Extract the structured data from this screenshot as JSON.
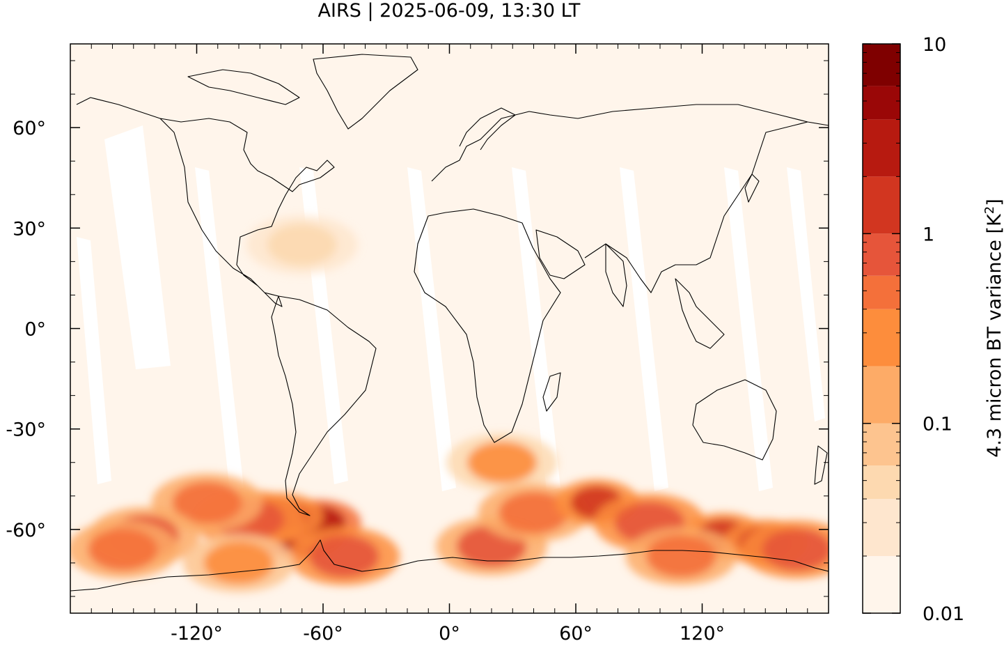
{
  "chart_data": {
    "type": "heatmap",
    "title": "AIRS | 2025-06-09, 13:30 LT",
    "x_axis": {
      "range": [
        -180,
        180
      ],
      "tick_labels": [
        {
          "value": -120,
          "label": "-120°"
        },
        {
          "value": -60,
          "label": "-60°"
        },
        {
          "value": 0,
          "label": "0°"
        },
        {
          "value": 60,
          "label": "60°"
        },
        {
          "value": 120,
          "label": "120°"
        }
      ]
    },
    "y_axis": {
      "range": [
        -85,
        85
      ],
      "tick_labels": [
        {
          "value": 60,
          "label": "60°"
        },
        {
          "value": 30,
          "label": "30°"
        },
        {
          "value": 0,
          "label": "0°"
        },
        {
          "value": -30,
          "label": "-30°"
        },
        {
          "value": -60,
          "label": "-60°"
        }
      ]
    },
    "colorbar": {
      "label": "4.3 micron BT variance [K²]",
      "scale": "log",
      "range": [
        0.01,
        10
      ],
      "tick_labels": [
        {
          "value": 0.01,
          "label": "0.01"
        },
        {
          "value": 0.1,
          "label": "0.1"
        },
        {
          "value": 1,
          "label": "1"
        },
        {
          "value": 10,
          "label": "10"
        }
      ],
      "levels": [
        0.01,
        0.02,
        0.04,
        0.06,
        0.1,
        0.2,
        0.4,
        0.6,
        1,
        2,
        4,
        6,
        10
      ],
      "colors": [
        "#fff5eb",
        "#fee6ce",
        "#fdd9b0",
        "#fdc48f",
        "#fdab67",
        "#fd8d3c",
        "#f4703a",
        "#e6553a",
        "#d23620",
        "#b71a10",
        "#9a0707",
        "#7f0000"
      ]
    },
    "variance_regions": [
      {
        "lon": -70,
        "lat": -62,
        "value": 3.0
      },
      {
        "lon": -62,
        "lat": -58,
        "value": 2.0
      },
      {
        "lon": -80,
        "lat": -56,
        "value": 1.2
      },
      {
        "lon": -95,
        "lat": -57,
        "value": 0.8
      },
      {
        "lon": -115,
        "lat": -52,
        "value": 0.5
      },
      {
        "lon": -145,
        "lat": -62,
        "value": 0.7
      },
      {
        "lon": -155,
        "lat": -66,
        "value": 0.4
      },
      {
        "lon": -50,
        "lat": -68,
        "value": 0.9
      },
      {
        "lon": 25,
        "lat": -40,
        "value": 0.2
      },
      {
        "lon": 20,
        "lat": -65,
        "value": 0.6
      },
      {
        "lon": 40,
        "lat": -55,
        "value": 0.4
      },
      {
        "lon": 70,
        "lat": -52,
        "value": 1.5
      },
      {
        "lon": 95,
        "lat": -58,
        "value": 0.8
      },
      {
        "lon": 130,
        "lat": -62,
        "value": 1.2
      },
      {
        "lon": 150,
        "lat": -64,
        "value": 1.5
      },
      {
        "lon": 165,
        "lat": -66,
        "value": 0.9
      },
      {
        "lon": 110,
        "lat": -68,
        "value": 0.5
      },
      {
        "lon": -100,
        "lat": -70,
        "value": 0.3
      },
      {
        "lon": -70,
        "lat": 25,
        "value": 0.05
      }
    ]
  }
}
